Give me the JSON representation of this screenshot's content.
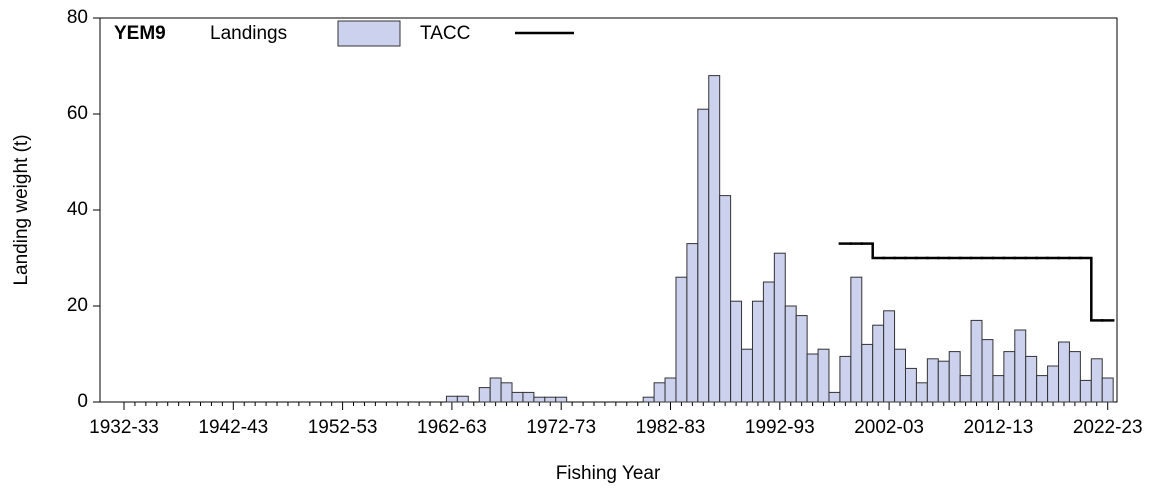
{
  "chart_data": {
    "type": "bar",
    "title": "YEM9",
    "x_label": "Fishing Year",
    "y_label": "Landing weight (t)",
    "categories": [
      "1932-33",
      null,
      null,
      null,
      null,
      null,
      null,
      null,
      null,
      null,
      "1942-43",
      null,
      null,
      null,
      null,
      null,
      null,
      null,
      null,
      null,
      "1952-53",
      null,
      null,
      null,
      null,
      null,
      null,
      null,
      null,
      null,
      "1962-63",
      null,
      null,
      null,
      null,
      null,
      null,
      null,
      null,
      null,
      "1972-73",
      null,
      null,
      null,
      null,
      null,
      null,
      null,
      null,
      null,
      "1982-83",
      null,
      null,
      null,
      null,
      null,
      null,
      null,
      null,
      null,
      "1992-93",
      null,
      null,
      null,
      null,
      null,
      null,
      null,
      null,
      null,
      "2002-03",
      null,
      null,
      null,
      null,
      null,
      null,
      null,
      null,
      null,
      "2012-13",
      null,
      null,
      null,
      null,
      null,
      null,
      null,
      null,
      null,
      "2022-23"
    ],
    "series": [
      {
        "name": "Landings",
        "color": "#ccd1ee",
        "type": "bar",
        "values": [
          0,
          0,
          0,
          0,
          0,
          0,
          0,
          0,
          0,
          0,
          0,
          0,
          0,
          0,
          0,
          0,
          0,
          0,
          0,
          0,
          0,
          0,
          0,
          0,
          0,
          0,
          0,
          0,
          0,
          0,
          1.2,
          1.2,
          0,
          3,
          5,
          4,
          2,
          2,
          1,
          1,
          1,
          0,
          0,
          0,
          0,
          0,
          0,
          0,
          1,
          4,
          5,
          26,
          33,
          61,
          68,
          43,
          21,
          11,
          21,
          25,
          31,
          20,
          18,
          10,
          11,
          2,
          9.5,
          26,
          12,
          16,
          19,
          11,
          7,
          4,
          9,
          8.5,
          10.5,
          5.5,
          17,
          13,
          5.5,
          10.5,
          15,
          9.5,
          5.5,
          7.5,
          12.5,
          10.5,
          4.5,
          9,
          5
        ]
      },
      {
        "name": "TACC",
        "color": "#000000",
        "type": "step",
        "values": [
          null,
          null,
          null,
          null,
          null,
          null,
          null,
          null,
          null,
          null,
          null,
          null,
          null,
          null,
          null,
          null,
          null,
          null,
          null,
          null,
          null,
          null,
          null,
          null,
          null,
          null,
          null,
          null,
          null,
          null,
          null,
          null,
          null,
          null,
          null,
          null,
          null,
          null,
          null,
          null,
          null,
          null,
          null,
          null,
          null,
          null,
          null,
          null,
          null,
          null,
          null,
          null,
          null,
          null,
          null,
          null,
          null,
          null,
          null,
          null,
          null,
          null,
          null,
          null,
          null,
          null,
          33,
          33,
          33,
          30,
          30,
          30,
          30,
          30,
          30,
          30,
          30,
          30,
          30,
          30,
          30,
          30,
          30,
          30,
          30,
          30,
          30,
          30,
          30,
          17,
          17
        ]
      }
    ],
    "ylim": [
      0,
      80
    ],
    "yticks": [
      0,
      20,
      40,
      60,
      80
    ]
  }
}
